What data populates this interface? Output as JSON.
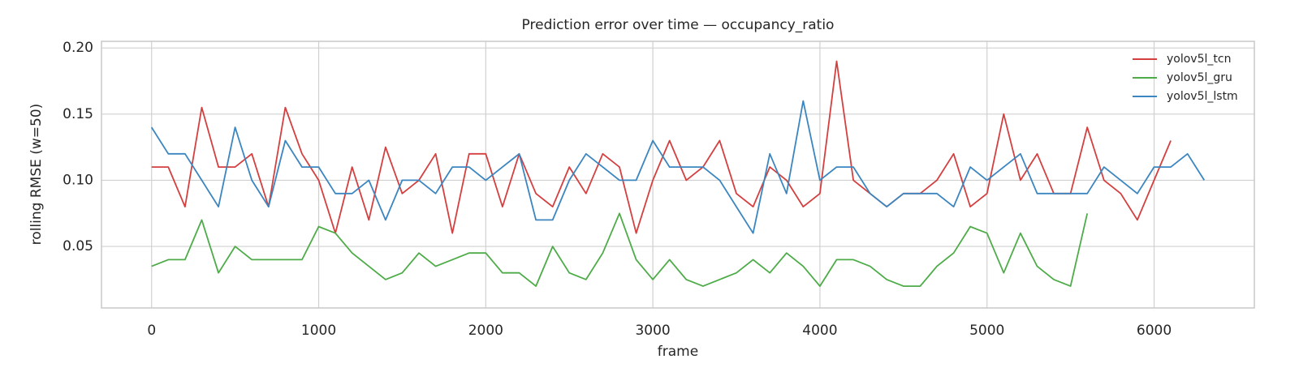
{
  "chart_data": {
    "type": "line",
    "title": "Prediction error over time — occupancy_ratio",
    "x_label": "frame",
    "y_label": "rolling RMSE (w=50)",
    "x": [
      0,
      100,
      200,
      300,
      400,
      500,
      600,
      700,
      800,
      900,
      1000,
      1100,
      1200,
      1300,
      1400,
      1500,
      1600,
      1700,
      1800,
      1900,
      2000,
      2100,
      2200,
      2300,
      2400,
      2500,
      2600,
      2700,
      2800,
      2900,
      3000,
      3100,
      3200,
      3300,
      3400,
      3500,
      3600,
      3700,
      3800,
      3900,
      4000,
      4100,
      4200,
      4300,
      4400,
      4500,
      4600,
      4700,
      4800,
      4900,
      5000,
      5100,
      5200,
      5300,
      5400,
      5500,
      5600,
      5700,
      5800,
      5900,
      6000,
      6100,
      6200,
      6300
    ],
    "series": [
      {
        "name": "yolov5l_tcn",
        "color": "#d43f3f",
        "values": [
          0.11,
          0.11,
          0.08,
          0.155,
          0.11,
          0.11,
          0.12,
          0.08,
          0.155,
          0.12,
          0.1,
          0.06,
          0.11,
          0.07,
          0.125,
          0.09,
          0.1,
          0.12,
          0.06,
          0.12,
          0.12,
          0.08,
          0.12,
          0.09,
          0.08,
          0.11,
          0.09,
          0.12,
          0.11,
          0.06,
          0.1,
          0.13,
          0.1,
          0.11,
          0.13,
          0.09,
          0.08,
          0.11,
          0.1,
          0.08,
          0.09,
          0.19,
          0.1,
          0.09,
          0.08,
          0.09,
          0.09,
          0.1,
          0.12,
          0.08,
          0.09,
          0.15,
          0.1,
          0.12,
          0.09,
          0.09,
          0.14,
          0.1,
          0.09,
          0.07,
          0.1,
          0.13,
          null,
          null
        ]
      },
      {
        "name": "yolov5l_gru",
        "color": "#4dac47",
        "values": [
          0.035,
          0.04,
          0.04,
          0.07,
          0.03,
          0.05,
          0.04,
          0.04,
          0.04,
          0.04,
          0.065,
          0.06,
          0.045,
          0.035,
          0.025,
          0.03,
          0.045,
          0.035,
          0.04,
          0.045,
          0.045,
          0.03,
          0.03,
          0.02,
          0.05,
          0.03,
          0.025,
          0.045,
          0.075,
          0.04,
          0.025,
          0.04,
          0.025,
          0.02,
          0.025,
          0.03,
          0.04,
          0.03,
          0.045,
          0.035,
          0.02,
          0.04,
          0.04,
          0.035,
          0.025,
          0.02,
          0.02,
          0.035,
          0.045,
          0.065,
          0.06,
          0.03,
          0.06,
          0.035,
          0.025,
          0.02,
          0.075,
          null,
          null,
          null,
          null,
          null,
          null,
          null
        ]
      },
      {
        "name": "yolov5l_lstm",
        "color": "#3b86c0",
        "values": [
          0.14,
          0.12,
          0.12,
          0.1,
          0.08,
          0.14,
          0.1,
          0.08,
          0.13,
          0.11,
          0.11,
          0.09,
          0.09,
          0.1,
          0.07,
          0.1,
          0.1,
          0.09,
          0.11,
          0.11,
          0.1,
          0.11,
          0.12,
          0.07,
          0.07,
          0.1,
          0.12,
          0.11,
          0.1,
          0.1,
          0.13,
          0.11,
          0.11,
          0.11,
          0.1,
          0.08,
          0.06,
          0.12,
          0.09,
          0.16,
          0.1,
          0.11,
          0.11,
          0.09,
          0.08,
          0.09,
          0.09,
          0.09,
          0.08,
          0.11,
          0.1,
          0.11,
          0.12,
          0.09,
          0.09,
          0.09,
          0.09,
          0.11,
          0.1,
          0.09,
          0.11,
          0.11,
          0.12,
          0.1
        ]
      }
    ],
    "xlim": [
      -300,
      6600
    ],
    "xticks": [
      0,
      1000,
      2000,
      3000,
      4000,
      5000,
      6000
    ],
    "ylim": [
      0.0035,
      0.205
    ],
    "yticks": [
      0.05,
      {
        "value": 0.1,
        "label": "0.10"
      },
      0.15,
      {
        "value": 0.2,
        "label": "0.20"
      }
    ],
    "grid": true,
    "legend": "upper right"
  }
}
